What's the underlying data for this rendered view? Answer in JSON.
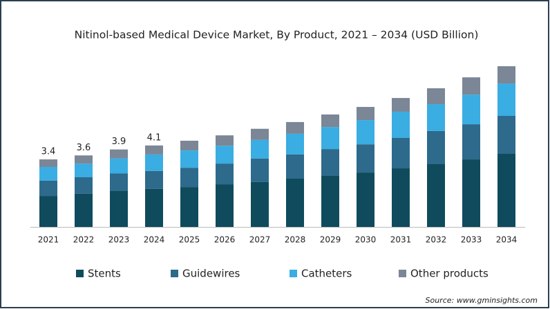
{
  "chart_data": {
    "type": "stacked_bar",
    "title": "Nitinol-based Medical Device Market, By Product, 2021 – 2034 (USD Billion)",
    "categories": [
      "2021",
      "2022",
      "2023",
      "2024",
      "2025",
      "2026",
      "2027",
      "2028",
      "2029",
      "2030",
      "2031",
      "2032",
      "2033",
      "2034"
    ],
    "series": [
      {
        "name": "Stents",
        "color": "#0f4b5d",
        "values": [
          1.56,
          1.67,
          1.82,
          1.92,
          2.01,
          2.15,
          2.26,
          2.43,
          2.57,
          2.74,
          2.95,
          3.16,
          3.4,
          3.68
        ]
      },
      {
        "name": "Guidewires",
        "color": "#2d6a8c",
        "values": [
          0.77,
          0.83,
          0.87,
          0.9,
          0.97,
          1.04,
          1.18,
          1.22,
          1.35,
          1.42,
          1.53,
          1.67,
          1.77,
          1.91
        ]
      },
      {
        "name": "Catheters",
        "color": "#3aade2",
        "values": [
          0.69,
          0.69,
          0.76,
          0.83,
          0.87,
          0.9,
          0.94,
          1.04,
          1.11,
          1.22,
          1.32,
          1.35,
          1.49,
          1.63
        ]
      },
      {
        "name": "Other products",
        "color": "#7b8696",
        "values": [
          0.38,
          0.41,
          0.45,
          0.45,
          0.49,
          0.52,
          0.56,
          0.59,
          0.63,
          0.66,
          0.69,
          0.8,
          0.87,
          0.87
        ]
      }
    ],
    "totals": [
      3.4,
      3.6,
      3.9,
      4.1,
      null,
      null,
      null,
      null,
      null,
      null,
      null,
      null,
      null,
      null
    ],
    "legend": "bottom",
    "source": "Source: www.gminsights.com"
  }
}
